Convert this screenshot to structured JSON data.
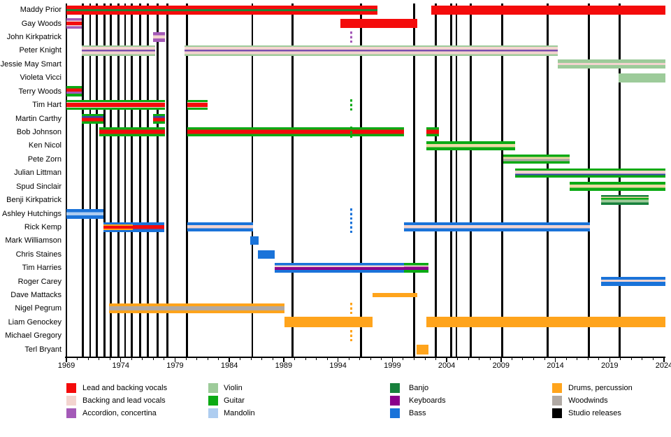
{
  "chart_data": {
    "type": "gantt",
    "x_axis": {
      "start": 1969,
      "end": 2024,
      "minor_tick_interval": 1,
      "major_tick_interval": 5,
      "major_labels": [
        "1969",
        "1974",
        "1979",
        "1984",
        "1989",
        "1994",
        "1999",
        "2004",
        "2009",
        "2014",
        "2019",
        "2024"
      ]
    },
    "palette": {
      "red": "#f40b0b",
      "pink": "#f3d4cf",
      "orchid": "#a45ab8",
      "violet": "#7a4fae",
      "violin": "#9dcb9a",
      "guitar": "#0baa14",
      "mandolin": "#aecdf0",
      "banjo": "#17803c",
      "keyboards": "#8b008b",
      "bass": "#1a73d9",
      "drums": "#ffa41c",
      "woodwinds": "#b0a9a4",
      "navy": "#3a47a8",
      "wheat": "#eed9a4",
      "dkgreen": "#1f8736",
      "black": "#000000"
    },
    "release_years": [
      1970.5,
      1971.2,
      1971.8,
      1972.5,
      1973.1,
      1973.8,
      1974.4,
      1975.0,
      1975.8,
      1976.5,
      1977.4,
      1978.3,
      1980.1,
      1986.1,
      1989.8,
      1996.1,
      2001.0,
      2003.0,
      2004.4,
      2004.9,
      2006.2,
      2009.1,
      2013.3,
      2017.1,
      2019.9
    ],
    "legend_columns": [
      [
        {
          "label": "Lead and backing vocals",
          "color": "red"
        },
        {
          "label": "Backing and lead vocals",
          "color": "pink"
        },
        {
          "label": "Accordion, concertina",
          "color": "orchid"
        }
      ],
      [
        {
          "label": "Violin",
          "color": "violin"
        },
        {
          "label": "Guitar",
          "color": "guitar"
        },
        {
          "label": "Mandolin",
          "color": "mandolin"
        }
      ],
      [
        {
          "label": "Banjo",
          "color": "banjo"
        },
        {
          "label": "Keyboards",
          "color": "keyboards"
        },
        {
          "label": "Bass",
          "color": "bass"
        }
      ],
      [
        {
          "label": "Drums, percussion",
          "color": "drums"
        },
        {
          "label": "Woodwinds",
          "color": "woodwinds"
        },
        {
          "label": "Studio releases",
          "color": "black"
        }
      ]
    ],
    "members": [
      {
        "name": "Maddy Prior",
        "bars": [
          {
            "start": 1969.0,
            "end": 1997.6,
            "h": 13,
            "stripes": [
              [
                "red",
                38
              ],
              [
                "dkgreen",
                24
              ],
              [
                "red",
                38
              ]
            ]
          },
          {
            "start": 2002.6,
            "end": 2024.1,
            "h": 13,
            "stripes": [
              [
                "red",
                100
              ]
            ]
          }
        ]
      },
      {
        "name": "Gay Woods",
        "bars": [
          {
            "start": 1969.0,
            "end": 1970.4,
            "h": 15,
            "stripes": [
              [
                "orchid",
                24
              ],
              [
                "pink",
                10
              ],
              [
                "red",
                32
              ],
              [
                "pink",
                10
              ],
              [
                "orchid",
                24
              ]
            ]
          },
          {
            "start": 1994.2,
            "end": 2001.3,
            "h": 13,
            "stripes": [
              [
                "red",
                100
              ]
            ]
          }
        ]
      },
      {
        "name": "John Kirkpatrick",
        "bars": [
          {
            "start": 1977.0,
            "end": 1978.1,
            "h": 14,
            "stripes": [
              [
                "orchid",
                32
              ],
              [
                "pink",
                34
              ],
              [
                "orchid",
                34
              ]
            ]
          }
        ],
        "dashes": [
          {
            "year": 1995.2,
            "color": "orchid"
          }
        ]
      },
      {
        "name": "Peter Knight",
        "bars": [
          {
            "start": 1970.4,
            "end": 1977.2,
            "h": 15,
            "stripes": [
              [
                "violin",
                14
              ],
              [
                "pink",
                27
              ],
              [
                "violet",
                16
              ],
              [
                "pink",
                27
              ],
              [
                "violin",
                16
              ]
            ]
          },
          {
            "start": 1979.9,
            "end": 2014.2,
            "h": 15,
            "stripes": [
              [
                "violin",
                14
              ],
              [
                "pink",
                27
              ],
              [
                "violet",
                16
              ],
              [
                "pink",
                27
              ],
              [
                "violin",
                16
              ]
            ]
          }
        ]
      },
      {
        "name": "Jessie May Smart",
        "bars": [
          {
            "start": 2014.2,
            "end": 2024.1,
            "h": 13,
            "stripes": [
              [
                "violin",
                38
              ],
              [
                "pink",
                24
              ],
              [
                "violin",
                38
              ]
            ]
          }
        ]
      },
      {
        "name": "Violeta Vicci",
        "bars": [
          {
            "start": 2019.8,
            "end": 2024.1,
            "h": 13,
            "stripes": [
              [
                "violin",
                100
              ]
            ]
          }
        ]
      },
      {
        "name": "Terry Woods",
        "bars": [
          {
            "start": 1969.0,
            "end": 1970.4,
            "h": 15,
            "stripes": [
              [
                "guitar",
                22
              ],
              [
                "red",
                30
              ],
              [
                "orchid",
                22
              ],
              [
                "guitar",
                26
              ]
            ]
          }
        ]
      },
      {
        "name": "Tim Hart",
        "bars": [
          {
            "start": 1969.0,
            "end": 1978.1,
            "h": 14,
            "stripes": [
              [
                "guitar",
                20
              ],
              [
                "pink",
                10
              ],
              [
                "red",
                40
              ],
              [
                "pink",
                10
              ],
              [
                "guitar",
                20
              ]
            ]
          },
          {
            "start": 1980.1,
            "end": 1982.0,
            "h": 14,
            "stripes": [
              [
                "guitar",
                20
              ],
              [
                "pink",
                10
              ],
              [
                "red",
                40
              ],
              [
                "pink",
                10
              ],
              [
                "guitar",
                20
              ]
            ]
          }
        ],
        "dashes": [
          {
            "year": 1995.2,
            "color": "guitar"
          }
        ]
      },
      {
        "name": "Martin Carthy",
        "bars": [
          {
            "start": 1970.4,
            "end": 1972.4,
            "h": 14,
            "stripes": [
              [
                "guitar",
                22
              ],
              [
                "navy",
                16
              ],
              [
                "red",
                36
              ],
              [
                "guitar",
                26
              ]
            ]
          },
          {
            "start": 1977.0,
            "end": 1978.1,
            "h": 14,
            "stripes": [
              [
                "guitar",
                22
              ],
              [
                "navy",
                16
              ],
              [
                "red",
                36
              ],
              [
                "guitar",
                26
              ]
            ]
          }
        ]
      },
      {
        "name": "Bob Johnson",
        "bars": [
          {
            "start": 1972.0,
            "end": 1978.1,
            "h": 13,
            "stripes": [
              [
                "guitar",
                28
              ],
              [
                "red",
                44
              ],
              [
                "guitar",
                28
              ]
            ]
          },
          {
            "start": 1980.1,
            "end": 2000.1,
            "h": 13,
            "stripes": [
              [
                "guitar",
                28
              ],
              [
                "red",
                44
              ],
              [
                "guitar",
                28
              ]
            ]
          },
          {
            "start": 2002.1,
            "end": 2003.3,
            "h": 13,
            "stripes": [
              [
                "guitar",
                28
              ],
              [
                "red",
                44
              ],
              [
                "guitar",
                28
              ]
            ]
          }
        ],
        "dashes": [
          {
            "year": 1995.2,
            "color": "guitar"
          }
        ]
      },
      {
        "name": "Ken Nicol",
        "bars": [
          {
            "start": 2002.1,
            "end": 2010.3,
            "h": 13,
            "stripes": [
              [
                "guitar",
                30
              ],
              [
                "wheat",
                36
              ],
              [
                "guitar",
                34
              ]
            ]
          }
        ]
      },
      {
        "name": "Pete Zorn",
        "bars": [
          {
            "start": 2009.2,
            "end": 2015.3,
            "h": 13,
            "stripes": [
              [
                "guitar",
                26
              ],
              [
                "wheat",
                22
              ],
              [
                "woodwinds",
                24
              ],
              [
                "guitar",
                28
              ]
            ]
          }
        ]
      },
      {
        "name": "Julian Littman",
        "bars": [
          {
            "start": 2010.3,
            "end": 2024.1,
            "h": 13,
            "stripes": [
              [
                "guitar",
                24
              ],
              [
                "pink",
                34
              ],
              [
                "navy",
                16
              ],
              [
                "guitar",
                26
              ]
            ]
          }
        ]
      },
      {
        "name": "Spud Sinclair",
        "bars": [
          {
            "start": 2015.3,
            "end": 2024.1,
            "h": 13,
            "stripes": [
              [
                "guitar",
                30
              ],
              [
                "wheat",
                36
              ],
              [
                "guitar",
                34
              ]
            ]
          }
        ]
      },
      {
        "name": "Benji Kirkpatrick",
        "bars": [
          {
            "start": 2018.2,
            "end": 2022.6,
            "h": 14,
            "stripes": [
              [
                "banjo",
                18
              ],
              [
                "wheat",
                10
              ],
              [
                "guitar",
                18
              ],
              [
                "violin",
                30
              ],
              [
                "banjo",
                24
              ]
            ]
          }
        ]
      },
      {
        "name": "Ashley Hutchings",
        "bars": [
          {
            "start": 1969.0,
            "end": 1972.4,
            "h": 14,
            "stripes": [
              [
                "bass",
                32
              ],
              [
                "mandolin",
                32
              ],
              [
                "bass",
                36
              ]
            ]
          }
        ],
        "dashes": [
          {
            "year": 1995.2,
            "color": "bass"
          }
        ]
      },
      {
        "name": "Rick Kemp",
        "bars": [
          {
            "start": 1972.4,
            "end": 1975.1,
            "h": 14,
            "stripes": [
              [
                "bass",
                20
              ],
              [
                "drums",
                14
              ],
              [
                "red",
                32
              ],
              [
                "drums",
                14
              ],
              [
                "bass",
                20
              ]
            ]
          },
          {
            "start": 1975.1,
            "end": 1978.0,
            "h": 14,
            "stripes": [
              [
                "bass",
                28
              ],
              [
                "red",
                40
              ],
              [
                "bass",
                32
              ]
            ]
          },
          {
            "start": 1980.1,
            "end": 1986.2,
            "h": 13,
            "stripes": [
              [
                "bass",
                30
              ],
              [
                "pink",
                36
              ],
              [
                "bass",
                34
              ]
            ]
          },
          {
            "start": 2000.1,
            "end": 2017.2,
            "h": 13,
            "stripes": [
              [
                "bass",
                30
              ],
              [
                "pink",
                36
              ],
              [
                "bass",
                34
              ]
            ]
          }
        ],
        "dashes": [
          {
            "year": 1995.2,
            "color": "bass"
          }
        ]
      },
      {
        "name": "Mark Williamson",
        "bars": [
          {
            "start": 1985.9,
            "end": 1986.7,
            "h": 12,
            "stripes": [
              [
                "bass",
                100
              ]
            ]
          }
        ]
      },
      {
        "name": "Chris Staines",
        "bars": [
          {
            "start": 1986.6,
            "end": 1988.2,
            "h": 12,
            "stripes": [
              [
                "bass",
                100
              ]
            ]
          }
        ]
      },
      {
        "name": "Tim Harries",
        "bars": [
          {
            "start": 1988.2,
            "end": 2000.1,
            "h": 14,
            "stripes": [
              [
                "bass",
                26
              ],
              [
                "pink",
                16
              ],
              [
                "keyboards",
                28
              ],
              [
                "bass",
                30
              ]
            ]
          },
          {
            "start": 2000.1,
            "end": 2002.3,
            "h": 14,
            "stripes": [
              [
                "guitar",
                24
              ],
              [
                "pink",
                16
              ],
              [
                "keyboards",
                30
              ],
              [
                "guitar",
                30
              ]
            ]
          }
        ]
      },
      {
        "name": "Roger Carey",
        "bars": [
          {
            "start": 2018.2,
            "end": 2024.1,
            "h": 13,
            "stripes": [
              [
                "bass",
                32
              ],
              [
                "pink",
                22
              ],
              [
                "bass",
                46
              ]
            ]
          }
        ]
      },
      {
        "name": "Dave Mattacks",
        "bars": [
          {
            "start": 1997.2,
            "end": 2001.3,
            "h": 6,
            "stripes": [
              [
                "drums",
                100
              ]
            ]
          }
        ]
      },
      {
        "name": "Nigel Pegrum",
        "bars": [
          {
            "start": 1972.9,
            "end": 1989.1,
            "h": 14,
            "stripes": [
              [
                "drums",
                30
              ],
              [
                "woodwinds",
                40
              ],
              [
                "drums",
                30
              ]
            ]
          }
        ],
        "dashes": [
          {
            "year": 1995.2,
            "color": "drums"
          }
        ]
      },
      {
        "name": "Liam Genockey",
        "bars": [
          {
            "start": 1989.1,
            "end": 1997.2,
            "h": 15,
            "stripes": [
              [
                "drums",
                100
              ]
            ]
          },
          {
            "start": 2002.1,
            "end": 2024.1,
            "h": 15,
            "stripes": [
              [
                "drums",
                100
              ]
            ]
          }
        ]
      },
      {
        "name": "Michael Gregory",
        "dashes": [
          {
            "year": 1995.2,
            "color": "drums"
          }
        ]
      },
      {
        "name": "Terl Bryant",
        "bars": [
          {
            "start": 2001.2,
            "end": 2002.3,
            "h": 14,
            "stripes": [
              [
                "drums",
                100
              ]
            ]
          }
        ]
      }
    ]
  }
}
